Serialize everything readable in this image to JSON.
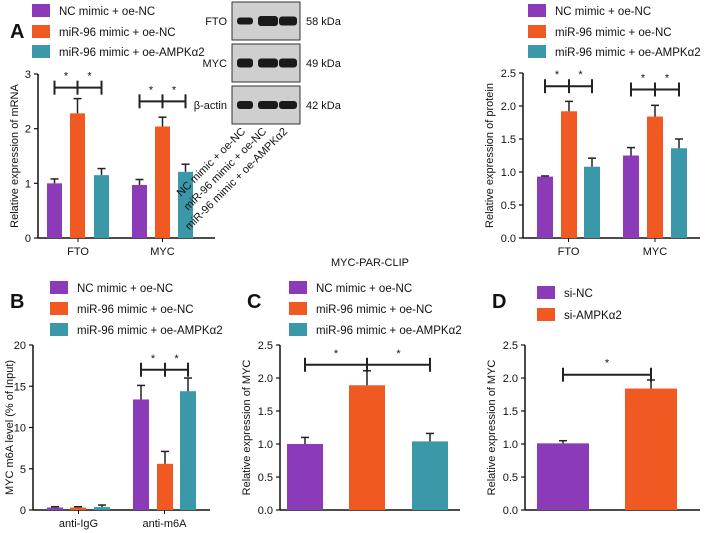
{
  "colors": {
    "purple": "#8B3BB8",
    "orange": "#F05A22",
    "teal": "#3A98A8"
  },
  "panel_labels": [
    "A",
    "B",
    "C",
    "D"
  ],
  "blot": {
    "rows": [
      {
        "name": "FTO",
        "kda": "58 kDa"
      },
      {
        "name": "MYC",
        "kda": "49 kDa"
      },
      {
        "name": "β-actin",
        "kda": "42 kDa"
      }
    ],
    "lanes": [
      "NC mimic + oe-NC",
      "miR-96 mimic + oe-NC",
      "miR-96 mimic + oe-AMPKα2"
    ]
  },
  "chart_data": [
    {
      "type": "bar",
      "panel": "A",
      "ylabel": "Relative expression of mRNA",
      "ylim": [
        0,
        3
      ],
      "yticks": [
        "0",
        "1",
        "2",
        "3"
      ],
      "categories": [
        "FTO",
        "MYC"
      ],
      "series": [
        {
          "name": "NC mimic + oe-NC",
          "values": [
            1.0,
            0.97
          ],
          "errors": [
            0.08,
            0.1
          ]
        },
        {
          "name": "miR-96 mimic + oe-NC",
          "values": [
            2.28,
            2.04
          ],
          "errors": [
            0.27,
            0.17
          ]
        },
        {
          "name": "miR-96 mimic + oe-AMPKα2",
          "values": [
            1.15,
            1.21
          ],
          "errors": [
            0.12,
            0.14
          ]
        }
      ],
      "significance": [
        {
          "category": "FTO",
          "level": 2.75,
          "marks": [
            "*",
            "*"
          ]
        },
        {
          "category": "MYC",
          "level": 2.5,
          "marks": [
            "*",
            "*"
          ]
        }
      ]
    },
    {
      "type": "bar",
      "panel": "A-protein",
      "ylabel": "Relative expression of protein",
      "ylim": [
        0,
        2.5
      ],
      "yticks": [
        "0.0",
        "0.5",
        "1.0",
        "1.5",
        "2.0",
        "2.5"
      ],
      "categories": [
        "FTO",
        "MYC"
      ],
      "series": [
        {
          "name": "NC mimic + oe-NC",
          "values": [
            0.93,
            1.25
          ],
          "errors": [
            0.01,
            0.12
          ]
        },
        {
          "name": "miR-96 mimic + oe-NC",
          "values": [
            1.92,
            1.84
          ],
          "errors": [
            0.15,
            0.17
          ]
        },
        {
          "name": "miR-96 mimic + oe-AMPKα2",
          "values": [
            1.08,
            1.36
          ],
          "errors": [
            0.13,
            0.14
          ]
        }
      ],
      "significance": [
        {
          "category": "FTO",
          "level": 2.3,
          "marks": [
            "*",
            "*"
          ]
        },
        {
          "category": "MYC",
          "level": 2.25,
          "marks": [
            "*",
            "*"
          ]
        }
      ]
    },
    {
      "type": "bar",
      "panel": "B",
      "ylabel": "MYC m6A level (% of Input)",
      "ylim": [
        0,
        20
      ],
      "yticks": [
        "0",
        "5",
        "10",
        "15",
        "20"
      ],
      "categories": [
        "anti-IgG",
        "anti-m6A"
      ],
      "series": [
        {
          "name": "NC mimic + oe-NC",
          "values": [
            0.3,
            13.4
          ],
          "errors": [
            0.1,
            1.7
          ]
        },
        {
          "name": "miR-96 mimic + oe-NC",
          "values": [
            0.3,
            5.6
          ],
          "errors": [
            0.1,
            1.5
          ]
        },
        {
          "name": "miR-96 mimic + oe-AMPKα2",
          "values": [
            0.35,
            14.4
          ],
          "errors": [
            0.25,
            1.6
          ]
        }
      ],
      "significance": [
        {
          "category": "anti-m6A",
          "level": 17,
          "marks": [
            "*",
            "*"
          ]
        }
      ]
    },
    {
      "type": "bar",
      "panel": "C",
      "title": "MYC-PAR-CLIP",
      "ylabel": "Relative expression of MYC",
      "ylim": [
        0,
        2.5
      ],
      "yticks": [
        "0.0",
        "0.5",
        "1.0",
        "1.5",
        "2.0",
        "2.5"
      ],
      "categories": [
        ""
      ],
      "series": [
        {
          "name": "NC mimic + oe-NC",
          "values": [
            1.0
          ],
          "errors": [
            0.1
          ]
        },
        {
          "name": "miR-96 mimic + oe-NC",
          "values": [
            1.89
          ],
          "errors": [
            0.22
          ]
        },
        {
          "name": "miR-96 mimic + oe-AMPKα2",
          "values": [
            1.04
          ],
          "errors": [
            0.12
          ]
        }
      ],
      "significance": [
        {
          "category": "",
          "level": 2.2,
          "marks": [
            "*",
            "*"
          ]
        }
      ]
    },
    {
      "type": "bar",
      "panel": "D",
      "ylabel": "Relative expression of MYC",
      "ylim": [
        0,
        2.5
      ],
      "yticks": [
        "0.0",
        "0.5",
        "1.0",
        "1.5",
        "2.0",
        "2.5"
      ],
      "categories": [
        ""
      ],
      "series": [
        {
          "name": "si-NC",
          "values": [
            1.01
          ],
          "errors": [
            0.04
          ]
        },
        {
          "name": "si-AMPKα2",
          "values": [
            1.84
          ],
          "errors": [
            0.13
          ]
        }
      ],
      "significance": [
        {
          "category": "",
          "level": 2.05,
          "marks": [
            "*"
          ]
        }
      ]
    }
  ]
}
